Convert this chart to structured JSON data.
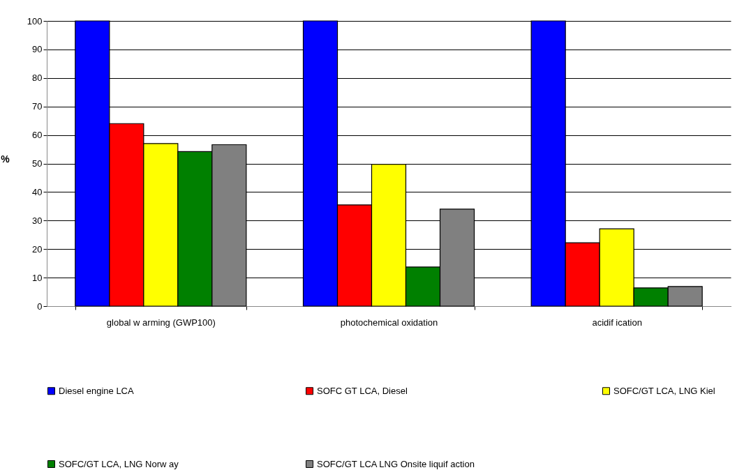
{
  "chart_data": {
    "type": "bar",
    "ylabel": "%",
    "categories": [
      "global w arming (GWP100)",
      "photochemical oxidation",
      "acidif ication"
    ],
    "series": [
      {
        "name": "Diesel engine LCA",
        "color": "#0000ff",
        "values": [
          100,
          100,
          100
        ]
      },
      {
        "name": "SOFC GT LCA, Diesel",
        "color": "#ff0000",
        "values": [
          64.0,
          35.5,
          22.2
        ]
      },
      {
        "name": "SOFC/GT LCA, LNG Kiel",
        "color": "#ffff00",
        "values": [
          57.0,
          49.7,
          27.1
        ]
      },
      {
        "name": "SOFC/GT LCA, LNG Norw ay",
        "color": "#008000",
        "values": [
          54.2,
          13.7,
          6.4
        ]
      },
      {
        "name": "SOFC/GT LCA LNG Onsite liquif action",
        "color": "#808080",
        "values": [
          56.6,
          34.0,
          6.9
        ]
      }
    ],
    "ylim": [
      0,
      100
    ],
    "yticks": [
      0,
      10,
      20,
      30,
      40,
      50,
      60,
      70,
      80,
      90,
      100
    ],
    "grid": "y",
    "legend": "bottom"
  }
}
